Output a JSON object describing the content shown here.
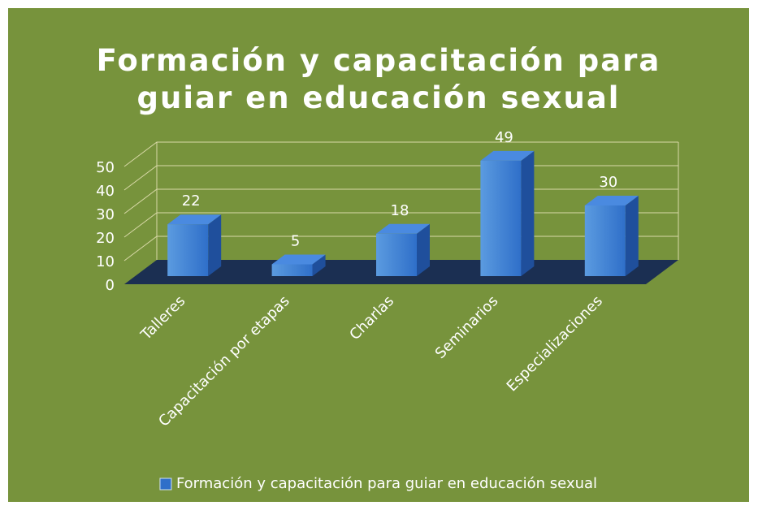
{
  "chart_data": {
    "type": "bar3d",
    "title": "Formación y capacitación para guiar en educación sexual",
    "categories": [
      "Talleres",
      "Capacitación por etapas",
      "Charlas",
      "Seminarios",
      "Especializaciones"
    ],
    "series": [
      {
        "name": "Formación y capacitación para guiar en educación sexual",
        "color": "#2f6fc9",
        "values": [
          22,
          5,
          18,
          49,
          30
        ]
      }
    ],
    "ylim": [
      0,
      50
    ],
    "yticks": [
      0,
      10,
      20,
      30,
      40,
      50
    ],
    "grid": true,
    "legend": "bottom",
    "background": "#77933c"
  }
}
